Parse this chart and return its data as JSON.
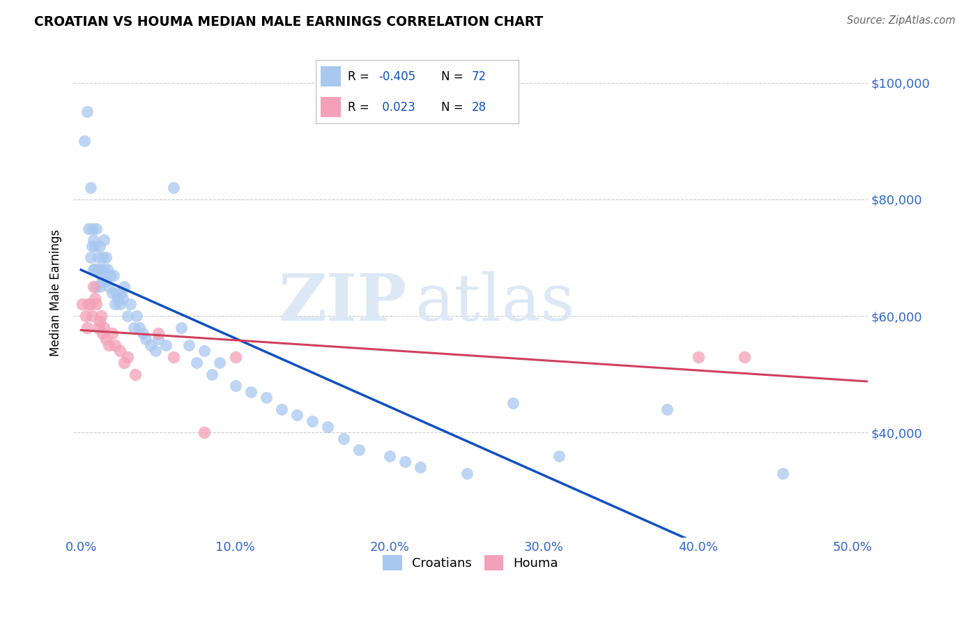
{
  "title": "CROATIAN VS HOUMA MEDIAN MALE EARNINGS CORRELATION CHART",
  "source": "Source: ZipAtlas.com",
  "ylabel_text": "Median Male Earnings",
  "x_ticks": [
    0.0,
    0.1,
    0.2,
    0.3,
    0.4,
    0.5
  ],
  "x_tick_labels": [
    "0.0%",
    "10.0%",
    "20.0%",
    "30.0%",
    "40.0%",
    "50.0%"
  ],
  "y_ticks": [
    40000,
    60000,
    80000,
    100000
  ],
  "y_tick_labels": [
    "$40,000",
    "$60,000",
    "$80,000",
    "$100,000"
  ],
  "xlim": [
    -0.005,
    0.51
  ],
  "ylim": [
    22000,
    106000
  ],
  "blue_color": "#A8C8F0",
  "pink_color": "#F4A0B8",
  "trend_blue": "#1050C0",
  "trend_pink": "#D04060",
  "legend_R_blue": "-0.405",
  "legend_N_blue": "72",
  "legend_R_pink": "0.023",
  "legend_N_pink": "28",
  "blue_x": [
    0.002,
    0.004,
    0.005,
    0.006,
    0.006,
    0.007,
    0.007,
    0.008,
    0.008,
    0.009,
    0.009,
    0.01,
    0.01,
    0.011,
    0.011,
    0.012,
    0.012,
    0.013,
    0.013,
    0.014,
    0.014,
    0.015,
    0.015,
    0.016,
    0.016,
    0.017,
    0.018,
    0.019,
    0.02,
    0.021,
    0.022,
    0.023,
    0.024,
    0.025,
    0.026,
    0.027,
    0.028,
    0.03,
    0.032,
    0.034,
    0.036,
    0.038,
    0.04,
    0.042,
    0.045,
    0.048,
    0.05,
    0.055,
    0.06,
    0.065,
    0.07,
    0.075,
    0.08,
    0.085,
    0.09,
    0.1,
    0.11,
    0.12,
    0.13,
    0.14,
    0.15,
    0.16,
    0.17,
    0.18,
    0.2,
    0.21,
    0.22,
    0.25,
    0.28,
    0.31,
    0.38,
    0.455
  ],
  "blue_y": [
    90000,
    95000,
    75000,
    82000,
    70000,
    75000,
    72000,
    68000,
    73000,
    72000,
    68000,
    75000,
    65000,
    70000,
    68000,
    72000,
    65000,
    68000,
    67000,
    70000,
    66000,
    73000,
    68000,
    70000,
    66000,
    68000,
    65000,
    67000,
    64000,
    67000,
    62000,
    64000,
    63000,
    62000,
    64000,
    63000,
    65000,
    60000,
    62000,
    58000,
    60000,
    58000,
    57000,
    56000,
    55000,
    54000,
    56000,
    55000,
    82000,
    58000,
    55000,
    52000,
    54000,
    50000,
    52000,
    48000,
    47000,
    46000,
    44000,
    43000,
    42000,
    41000,
    39000,
    37000,
    36000,
    35000,
    34000,
    33000,
    45000,
    36000,
    44000,
    33000
  ],
  "pink_x": [
    0.001,
    0.003,
    0.004,
    0.005,
    0.006,
    0.007,
    0.008,
    0.009,
    0.01,
    0.011,
    0.012,
    0.013,
    0.014,
    0.015,
    0.016,
    0.018,
    0.02,
    0.022,
    0.025,
    0.028,
    0.03,
    0.035,
    0.05,
    0.06,
    0.08,
    0.1,
    0.4,
    0.43
  ],
  "pink_y": [
    62000,
    60000,
    58000,
    62000,
    62000,
    60000,
    65000,
    63000,
    62000,
    58000,
    59000,
    60000,
    57000,
    58000,
    56000,
    55000,
    57000,
    55000,
    54000,
    52000,
    53000,
    50000,
    57000,
    53000,
    40000,
    53000,
    53000,
    53000
  ],
  "watermark_zip": "ZIP",
  "watermark_atlas": "atlas",
  "background_color": "#FFFFFF"
}
